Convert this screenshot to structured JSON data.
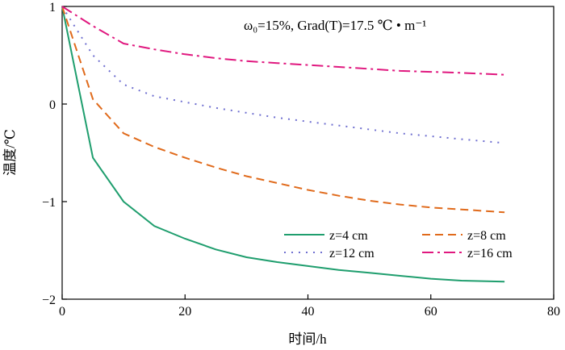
{
  "chart_data": {
    "type": "line",
    "annotation": "ω₀=15%, Grad(T)=17.5 ℃ • m⁻¹",
    "xlabel": "时间/h",
    "ylabel": "温度/℃",
    "xlim": [
      0,
      80
    ],
    "ylim": [
      -2,
      1
    ],
    "xticks": [
      0,
      20,
      40,
      60,
      80
    ],
    "yticks": [
      -2,
      -1,
      0,
      1
    ],
    "xtick_labels": [
      "0",
      "20",
      "40",
      "60",
      "80"
    ],
    "ytick_labels": [
      "−2",
      "−1",
      "0",
      "1"
    ],
    "grid": false,
    "legend_position": "lower-right",
    "series": [
      {
        "name": "z=4 cm",
        "color": "#1f9e6e",
        "dash": "solid",
        "points": [
          [
            0,
            1.0
          ],
          [
            5,
            -0.55
          ],
          [
            10,
            -1.0
          ],
          [
            15,
            -1.25
          ],
          [
            20,
            -1.38
          ],
          [
            25,
            -1.49
          ],
          [
            30,
            -1.57
          ],
          [
            35,
            -1.62
          ],
          [
            40,
            -1.66
          ],
          [
            45,
            -1.7
          ],
          [
            50,
            -1.73
          ],
          [
            55,
            -1.76
          ],
          [
            60,
            -1.79
          ],
          [
            65,
            -1.81
          ],
          [
            72,
            -1.82
          ]
        ]
      },
      {
        "name": "z=8 cm",
        "color": "#e06a1b",
        "dash": "dashed",
        "points": [
          [
            0,
            1.0
          ],
          [
            5,
            0.05
          ],
          [
            10,
            -0.3
          ],
          [
            15,
            -0.44
          ],
          [
            20,
            -0.55
          ],
          [
            25,
            -0.65
          ],
          [
            30,
            -0.74
          ],
          [
            35,
            -0.81
          ],
          [
            40,
            -0.88
          ],
          [
            45,
            -0.94
          ],
          [
            50,
            -0.99
          ],
          [
            55,
            -1.03
          ],
          [
            60,
            -1.06
          ],
          [
            65,
            -1.08
          ],
          [
            72,
            -1.11
          ]
        ]
      },
      {
        "name": "z=12 cm",
        "color": "#6f6fd0",
        "dash": "dotted",
        "points": [
          [
            0,
            1.0
          ],
          [
            5,
            0.5
          ],
          [
            10,
            0.2
          ],
          [
            15,
            0.08
          ],
          [
            20,
            0.02
          ],
          [
            25,
            -0.04
          ],
          [
            30,
            -0.09
          ],
          [
            35,
            -0.14
          ],
          [
            40,
            -0.18
          ],
          [
            45,
            -0.22
          ],
          [
            50,
            -0.26
          ],
          [
            55,
            -0.3
          ],
          [
            60,
            -0.33
          ],
          [
            65,
            -0.36
          ],
          [
            72,
            -0.4
          ]
        ]
      },
      {
        "name": "z=16 cm",
        "color": "#e0187f",
        "dash": "dashdot",
        "points": [
          [
            0,
            1.0
          ],
          [
            5,
            0.8
          ],
          [
            10,
            0.62
          ],
          [
            15,
            0.56
          ],
          [
            20,
            0.51
          ],
          [
            25,
            0.47
          ],
          [
            30,
            0.44
          ],
          [
            35,
            0.42
          ],
          [
            40,
            0.4
          ],
          [
            45,
            0.38
          ],
          [
            50,
            0.36
          ],
          [
            55,
            0.34
          ],
          [
            60,
            0.33
          ],
          [
            65,
            0.32
          ],
          [
            72,
            0.3
          ]
        ]
      }
    ]
  }
}
